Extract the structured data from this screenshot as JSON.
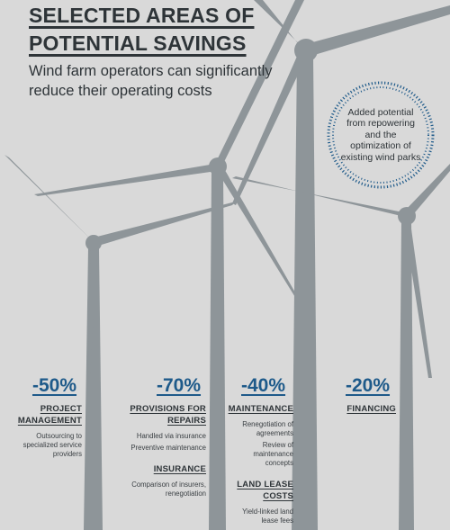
{
  "header": {
    "title_line1": "SELECTED AREAS OF",
    "title_line2": "POTENTIAL SAVINGS",
    "subtitle": "Wind farm operators can significantly reduce their operating costs"
  },
  "badge": {
    "text": "Added potential from repowering and the optimization of existing wind parks"
  },
  "colors": {
    "background": "#d9d9d9",
    "turbine": "#8e9599",
    "accent_blue": "#1e5a8a",
    "text": "#2e3438"
  },
  "savings": [
    {
      "percent": "-50%",
      "items": [
        {
          "heading": "PROJECT MANAGEMENT",
          "description": "Outsourcing to specialized service providers"
        }
      ]
    },
    {
      "percent": "-70%",
      "items": [
        {
          "heading": "PROVISIONS FOR REPAIRS",
          "description_lines": [
            "Handled via insurance",
            "Preventive maintenance"
          ]
        },
        {
          "heading": "INSURANCE",
          "description": "Comparison of insurers, renegotiation"
        }
      ]
    },
    {
      "percent": "-40%",
      "items": [
        {
          "heading": "MAINTENANCE",
          "description_lines": [
            "Renegotiation of agreements",
            "Review of maintenance concepts"
          ]
        },
        {
          "heading": "LAND LEASE COSTS",
          "description": "Yield-linked land lease fees"
        }
      ]
    },
    {
      "percent": "-20%",
      "items": [
        {
          "heading": "FINANCING"
        }
      ]
    }
  ]
}
